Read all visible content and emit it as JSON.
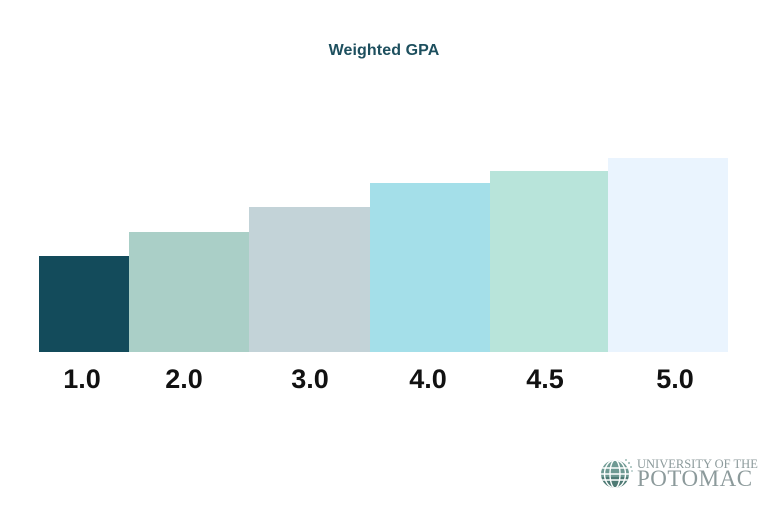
{
  "title": "Weighted GPA",
  "chart_data": {
    "type": "bar",
    "title": "Weighted GPA",
    "xlabel": "",
    "ylabel": "",
    "categories": [
      "1.0",
      "2.0",
      "3.0",
      "4.0",
      "4.5",
      "5.0"
    ],
    "values": [
      1.0,
      2.0,
      3.0,
      4.0,
      4.5,
      5.0
    ],
    "colors": [
      "#134b5b",
      "#aacfc7",
      "#c3d3d8",
      "#a4dfe9",
      "#b8e4da",
      "#eaf4fe"
    ],
    "grid": false,
    "legend": "none",
    "axes_visible": false
  },
  "logo": {
    "line1": "UNIVERSITY OF THE",
    "line2": "POTOMAC"
  }
}
